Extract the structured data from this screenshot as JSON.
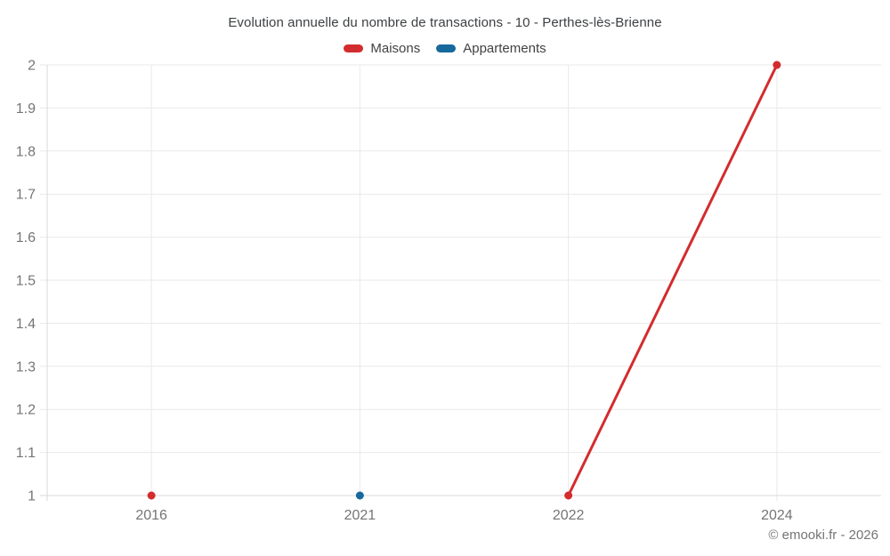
{
  "header": {
    "title": "Evolution annuelle du nombre de transactions - 10 - Perthes-lès-Brienne"
  },
  "chart_data": {
    "type": "line",
    "title": "Evolution annuelle du nombre de transactions - 10 - Perthes-lès-Brienne",
    "categories": [
      "2016",
      "2021",
      "2022",
      "2024"
    ],
    "series": [
      {
        "name": "Maisons",
        "color": "#d32c2e",
        "values": [
          1,
          null,
          1,
          2
        ]
      },
      {
        "name": "Appartements",
        "color": "#17699c",
        "values": [
          null,
          1,
          null,
          null
        ]
      }
    ],
    "xlabel": "",
    "ylabel": "",
    "ylim": [
      1,
      2
    ],
    "ytick_labels": [
      "1",
      "1.1",
      "1.2",
      "1.3",
      "1.4",
      "1.5",
      "1.6",
      "1.7",
      "1.8",
      "1.9",
      "2"
    ],
    "grid": true,
    "legend_position": "top"
  },
  "footer": {
    "copyright": "© emooki.fr - 2026"
  },
  "colors": {
    "grid": "#e9e9e9",
    "axis": "#d9d9d9",
    "tick_label": "#757575",
    "title_text": "#3d4043"
  }
}
